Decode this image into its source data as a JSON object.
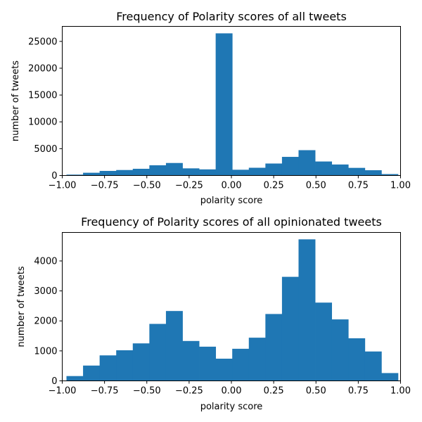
{
  "chart_data": [
    {
      "type": "bar",
      "title": "Frequency of Polarity scores of all tweets",
      "xlabel": "polarity score",
      "ylabel": "number of tweets",
      "xlim": [
        -1.0,
        1.0
      ],
      "ylim": [
        0,
        27800
      ],
      "xticks": [
        -1.0,
        -0.75,
        -0.5,
        -0.25,
        0.0,
        0.25,
        0.5,
        0.75,
        1.0
      ],
      "xtick_labels": [
        "−1.00",
        "−0.75",
        "−0.50",
        "−0.25",
        "0.00",
        "0.25",
        "0.50",
        "0.75",
        "1.00"
      ],
      "yticks": [
        0,
        5000,
        10000,
        15000,
        20000,
        25000
      ],
      "ytick_labels": [
        "0",
        "5000",
        "10000",
        "15000",
        "20000",
        "25000"
      ],
      "bin_edges": [
        -0.975,
        -0.877,
        -0.779,
        -0.681,
        -0.583,
        -0.485,
        -0.387,
        -0.289,
        -0.191,
        -0.093,
        0.005,
        0.103,
        0.201,
        0.299,
        0.397,
        0.495,
        0.593,
        0.691,
        0.789,
        0.887,
        0.985
      ],
      "values": [
        160,
        510,
        850,
        1020,
        1250,
        1900,
        2330,
        1330,
        1140,
        26500,
        1070,
        1440,
        2230,
        3470,
        4720,
        2610,
        2050,
        1420,
        980,
        260
      ],
      "color": "#1f77b4"
    },
    {
      "type": "bar",
      "title": "Frequency of Polarity scores of all opinionated tweets",
      "xlabel": "polarity score",
      "ylabel": "number of tweets",
      "xlim": [
        -1.0,
        1.0
      ],
      "ylim": [
        0,
        4950
      ],
      "xticks": [
        -1.0,
        -0.75,
        -0.5,
        -0.25,
        0.0,
        0.25,
        0.5,
        0.75,
        1.0
      ],
      "xtick_labels": [
        "−1.00",
        "−0.75",
        "−0.50",
        "−0.25",
        "0.00",
        "0.25",
        "0.50",
        "0.75",
        "1.00"
      ],
      "yticks": [
        0,
        1000,
        2000,
        3000,
        4000
      ],
      "ytick_labels": [
        "0",
        "1000",
        "2000",
        "3000",
        "4000"
      ],
      "bin_edges": [
        -0.975,
        -0.877,
        -0.779,
        -0.681,
        -0.583,
        -0.485,
        -0.387,
        -0.289,
        -0.191,
        -0.093,
        0.005,
        0.103,
        0.201,
        0.299,
        0.397,
        0.495,
        0.593,
        0.691,
        0.789,
        0.887,
        0.985
      ],
      "values": [
        160,
        510,
        850,
        1020,
        1250,
        1900,
        2330,
        1330,
        1140,
        740,
        1070,
        1440,
        2230,
        3470,
        4720,
        2610,
        2050,
        1420,
        980,
        260
      ],
      "color": "#1f77b4"
    }
  ]
}
